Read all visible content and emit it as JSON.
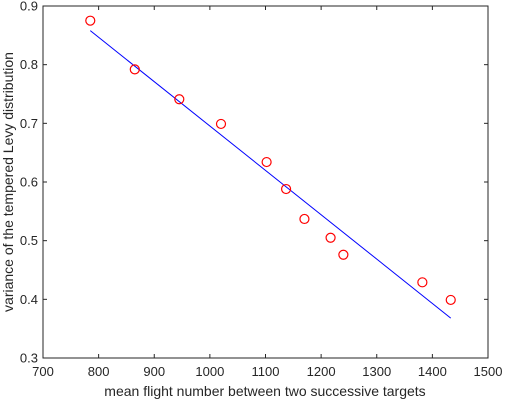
{
  "chart_data": {
    "type": "scatter",
    "title": "",
    "xlabel": "mean flight number between two successive targets",
    "ylabel": "variance of the tempered Levy distribution",
    "xlim": [
      700,
      1500
    ],
    "ylim": [
      0.3,
      0.9
    ],
    "xticks": [
      "700",
      "800",
      "900",
      "1000",
      "1100",
      "1200",
      "1300",
      "1400",
      "1500"
    ],
    "yticks": [
      "0.3",
      "0.4",
      "0.5",
      "0.6",
      "0.7",
      "0.8",
      "0.9"
    ],
    "grid": false,
    "legend": "none",
    "series": [
      {
        "kind": "scatter",
        "marker": "open-circle",
        "color": "#ff0000",
        "x": [
          785,
          865,
          945,
          1020,
          1102,
          1137,
          1170,
          1217,
          1240,
          1382,
          1433
        ],
        "y": [
          0.875,
          0.792,
          0.741,
          0.699,
          0.634,
          0.588,
          0.537,
          0.505,
          0.476,
          0.429,
          0.399
        ]
      },
      {
        "kind": "line",
        "color": "#0000ff",
        "x": [
          785,
          1433
        ],
        "y": [
          0.858,
          0.368
        ]
      }
    ]
  }
}
